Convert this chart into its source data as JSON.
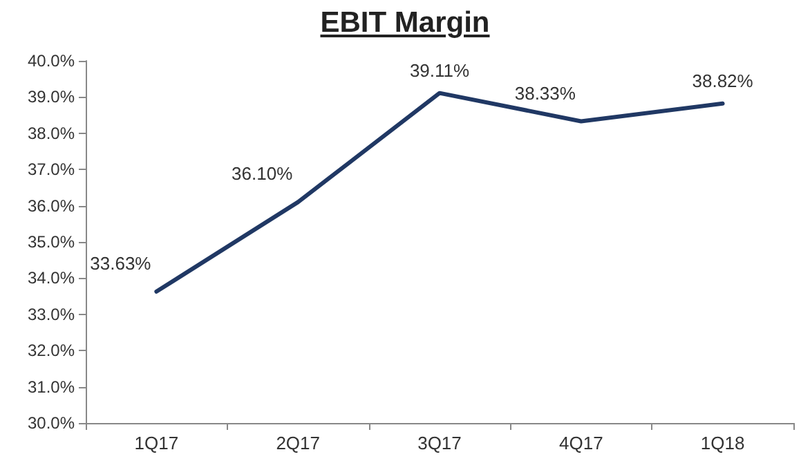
{
  "chart_data": {
    "type": "line",
    "title": "EBIT Margin",
    "categories": [
      "1Q17",
      "2Q17",
      "3Q17",
      "4Q17",
      "1Q18"
    ],
    "series": [
      {
        "color": "#203864",
        "values": [
          33.63,
          36.1,
          39.11,
          38.33,
          38.82
        ],
        "value_labels": [
          "33.63%",
          "36.10%",
          "39.11%",
          "38.33%",
          "38.82%"
        ]
      }
    ],
    "ylim": [
      30,
      40
    ],
    "yticks": [
      {
        "value": 30,
        "label": "30.0%"
      },
      {
        "value": 31,
        "label": "31.0%"
      },
      {
        "value": 32,
        "label": "32.0%"
      },
      {
        "value": 33,
        "label": "33.0%"
      },
      {
        "value": 34,
        "label": "34.0%"
      },
      {
        "value": 35,
        "label": "35.0%"
      },
      {
        "value": 36,
        "label": "36.0%"
      },
      {
        "value": 37,
        "label": "37.0%"
      },
      {
        "value": 38,
        "label": "38.0%"
      },
      {
        "value": 39,
        "label": "39.0%"
      },
      {
        "value": 40,
        "label": "40.0%"
      }
    ],
    "grid": false,
    "marker": "none",
    "line_style": "solid"
  }
}
